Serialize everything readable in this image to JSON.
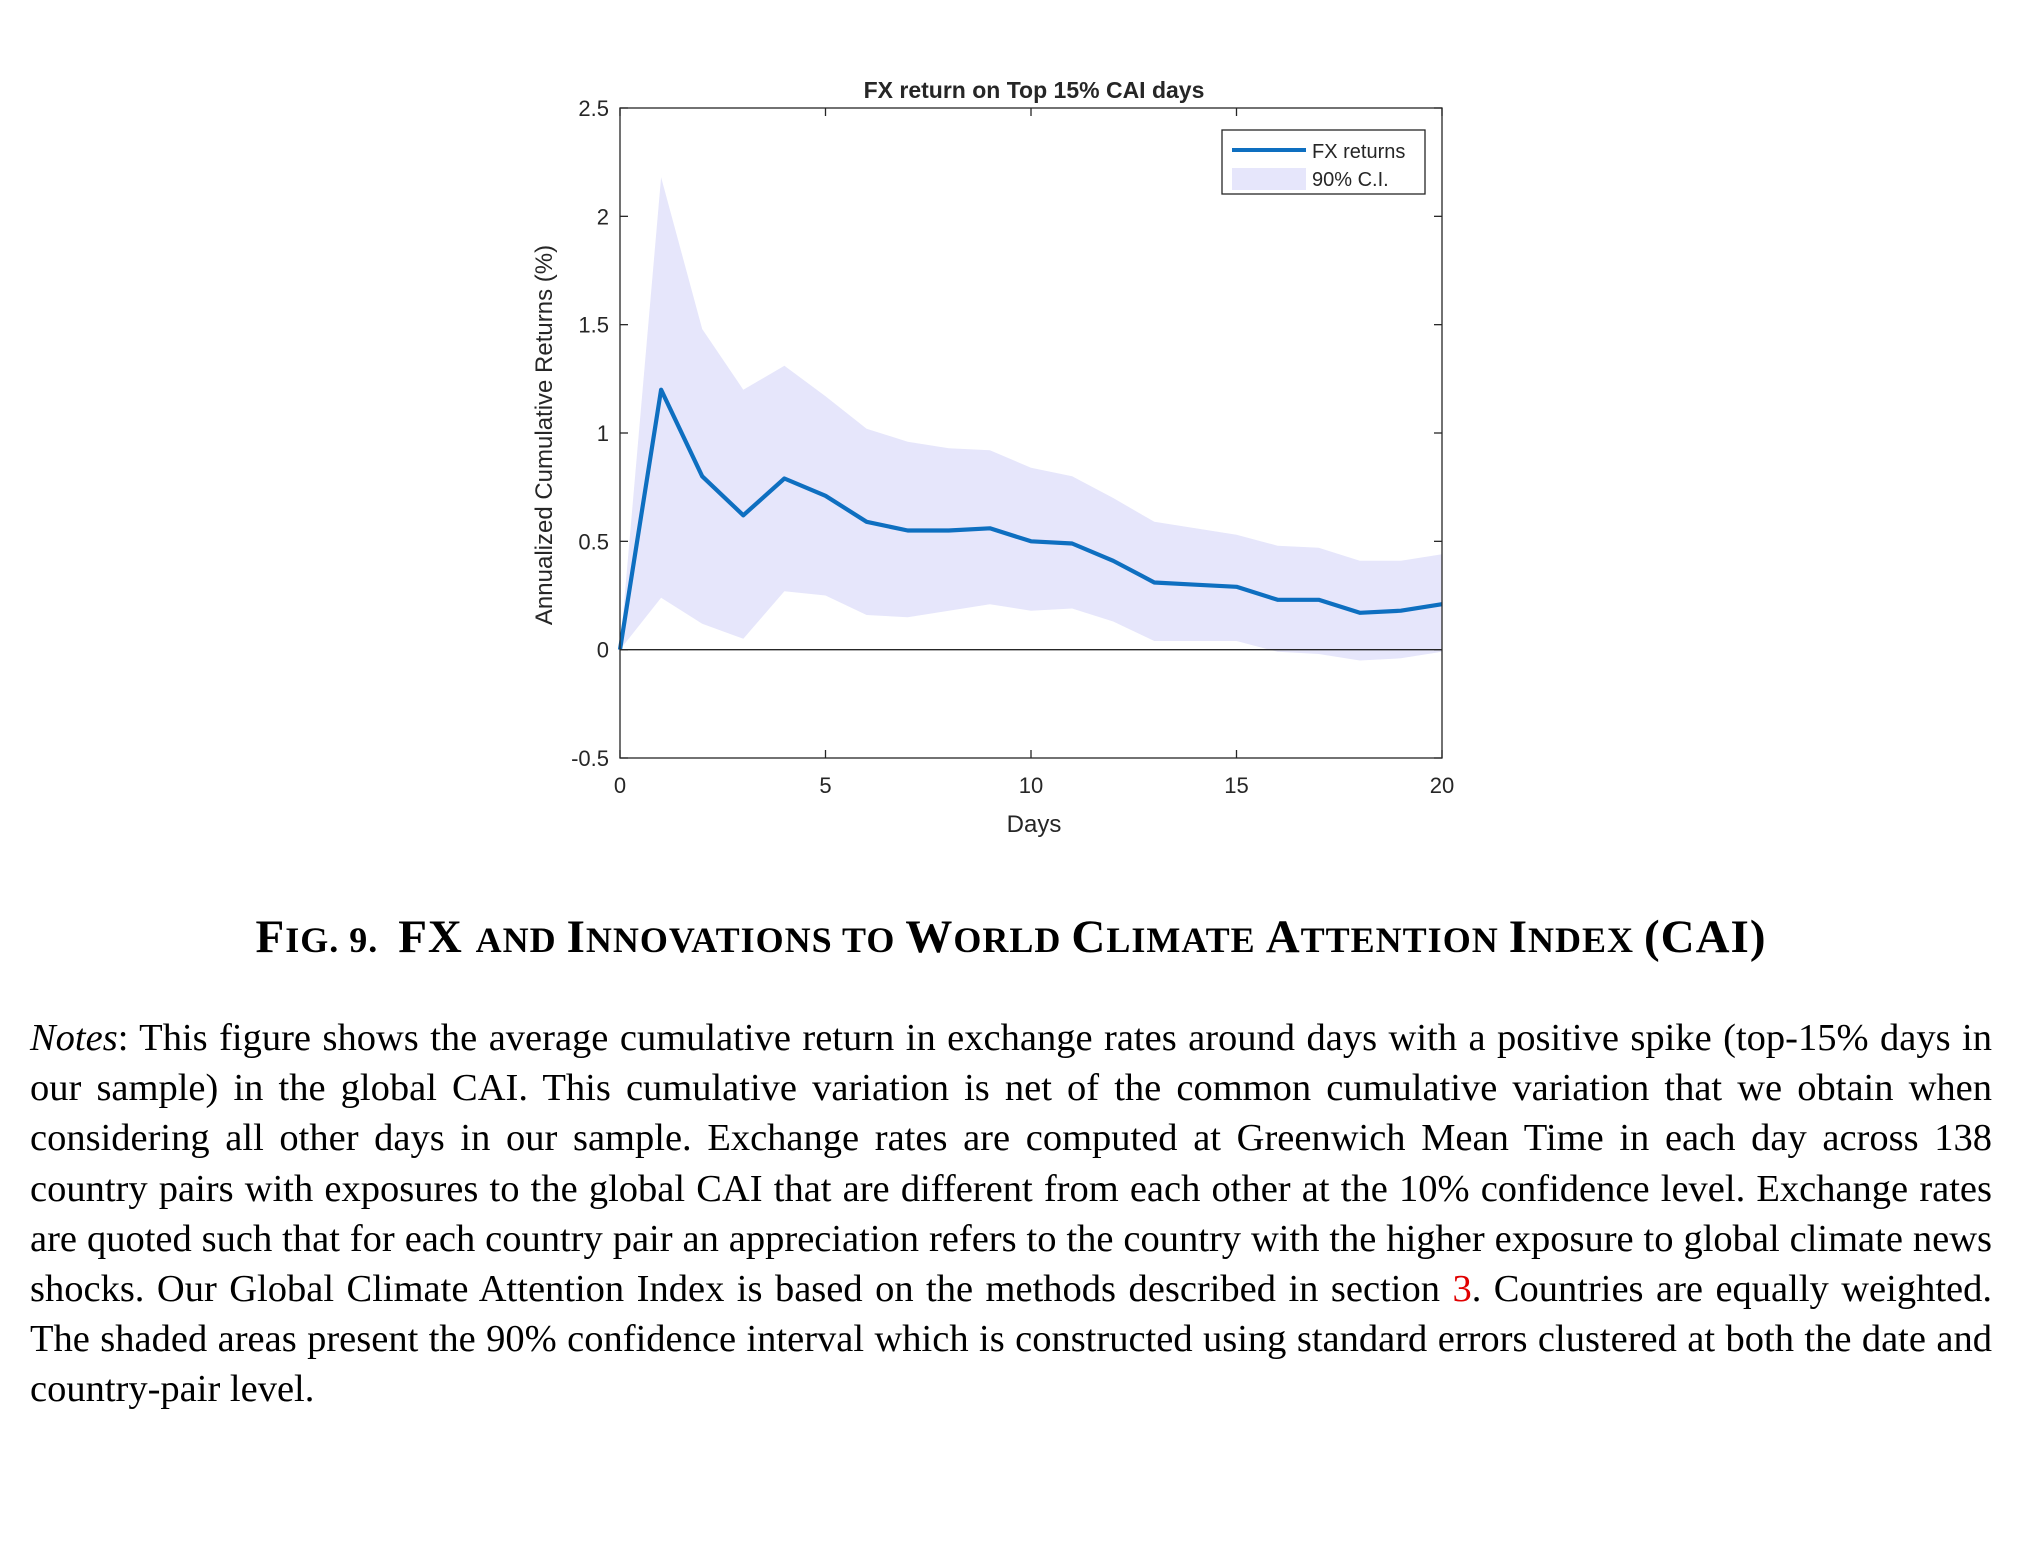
{
  "chart_data": {
    "type": "line",
    "title": "FX return on Top 15% CAI days",
    "xlabel": "Days",
    "ylabel": "Annualized Cumulative Returns (%)",
    "xlim": [
      0,
      20
    ],
    "ylim": [
      -0.5,
      2.5
    ],
    "xticks": [
      0,
      5,
      10,
      15,
      20
    ],
    "yticks": [
      -0.5,
      0,
      0.5,
      1,
      1.5,
      2,
      2.5
    ],
    "grid": false,
    "legend_position": "top-right",
    "x": [
      0,
      1,
      2,
      3,
      4,
      5,
      6,
      7,
      8,
      9,
      10,
      11,
      12,
      13,
      14,
      15,
      16,
      17,
      18,
      19,
      20
    ],
    "series": [
      {
        "name": "FX returns",
        "color": "#0e6fc0",
        "values": [
          0,
          1.2,
          0.8,
          0.62,
          0.79,
          0.71,
          0.59,
          0.55,
          0.55,
          0.56,
          0.5,
          0.49,
          0.41,
          0.31,
          0.3,
          0.29,
          0.23,
          0.23,
          0.17,
          0.18,
          0.21
        ]
      },
      {
        "name": "90% C.I.",
        "color": "#e6e6fb",
        "upper": [
          0,
          2.18,
          1.48,
          1.2,
          1.31,
          1.17,
          1.02,
          0.96,
          0.93,
          0.92,
          0.84,
          0.8,
          0.7,
          0.59,
          0.56,
          0.53,
          0.48,
          0.47,
          0.41,
          0.41,
          0.44
        ],
        "lower": [
          0,
          0.24,
          0.12,
          0.05,
          0.27,
          0.25,
          0.16,
          0.15,
          0.18,
          0.21,
          0.18,
          0.19,
          0.13,
          0.04,
          0.04,
          0.04,
          -0.01,
          -0.02,
          -0.05,
          -0.04,
          -0.01
        ]
      }
    ]
  },
  "caption": {
    "fig_label": "FIG. 9.",
    "title_parts": [
      {
        "t": "F",
        "sc": false
      },
      {
        "t": "IG. 9.  ",
        "sc": true
      },
      {
        "t": "FX ",
        "sc": false
      },
      {
        "t": "AND ",
        "sc": true
      },
      {
        "t": "I",
        "sc": false
      },
      {
        "t": "NNOVATIONS TO ",
        "sc": true
      },
      {
        "t": "W",
        "sc": false
      },
      {
        "t": "ORLD ",
        "sc": true
      },
      {
        "t": "C",
        "sc": false
      },
      {
        "t": "LIMATE ",
        "sc": true
      },
      {
        "t": "A",
        "sc": false
      },
      {
        "t": "TTENTION ",
        "sc": true
      },
      {
        "t": "I",
        "sc": false
      },
      {
        "t": "NDEX ",
        "sc": true
      },
      {
        "t": "(CAI)",
        "sc": false
      }
    ]
  },
  "notes": {
    "label": "Notes",
    "text_before_ref": ": This figure shows the average cumulative return in exchange rates around days with a positive spike (top-15% days in our sample) in the global CAI. This cumulative variation is net of the common cumulative variation that we obtain when considering all other days in our sample. Exchange rates are computed at Greenwich Mean Time in each day across 138 country pairs with exposures to the global CAI that are different from each other at the 10% confidence level. Exchange rates are quoted such that for each country pair an appreciation refers to the country with the higher exposure to global climate news shocks. Our Global Climate Attention Index is based on the methods described in section ",
    "ref": "3",
    "text_after_ref": ". Countries are equally weighted. The shaded areas present the 90% confidence interval which is constructed using standard errors clustered at both the date and country-pair level."
  }
}
